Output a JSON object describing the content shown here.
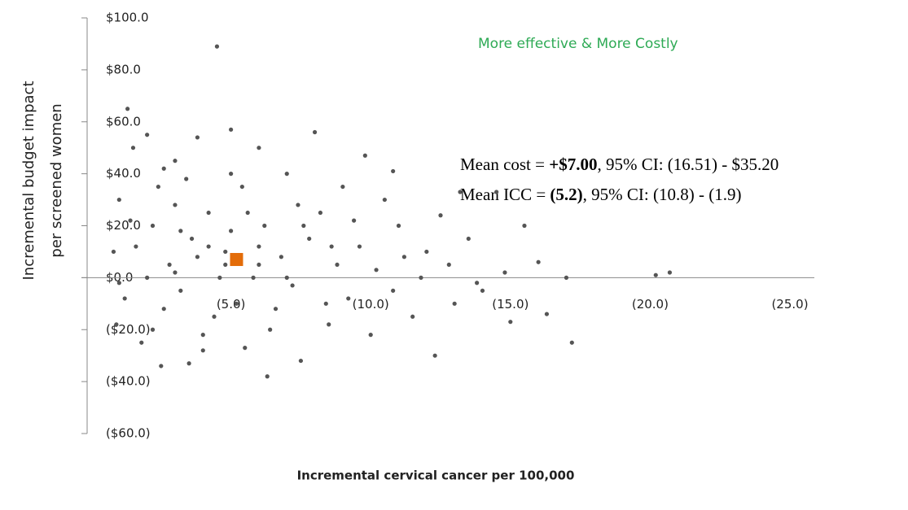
{
  "chart_data": {
    "type": "scatter",
    "y_label": [
      "Incremental budget impact",
      "per screened women"
    ],
    "x_label": "Incremental cervical cancer per 100,000",
    "quadrant_note": "More effective & More Costly",
    "mean_cost": [
      "Mean cost = ",
      "+$7.00",
      ", 95% CI: (16.51) - $35.20"
    ],
    "mean_icc": [
      "Mean ICC = ",
      "(5.2)",
      ", 95% CI: (10.8) - (1.9)"
    ],
    "xlim": [
      0,
      -25
    ],
    "ylim": [
      -60,
      100
    ],
    "xticks": [
      {
        "value": -5,
        "label": "(5.0)"
      },
      {
        "value": -10,
        "label": "(10.0)"
      },
      {
        "value": -15,
        "label": "(15.0)"
      },
      {
        "value": -20,
        "label": "(20.0)"
      },
      {
        "value": -25,
        "label": "(25.0)"
      }
    ],
    "yticks": [
      {
        "value": 100,
        "label": "$100.0"
      },
      {
        "value": 80,
        "label": "$80.0"
      },
      {
        "value": 60,
        "label": "$60.0"
      },
      {
        "value": 40,
        "label": "$40.0"
      },
      {
        "value": 20,
        "label": "$20.0"
      },
      {
        "value": 0,
        "label": "$0.0"
      },
      {
        "value": -20,
        "label": "($20.0)"
      },
      {
        "value": -40,
        "label": "($40.0)"
      },
      {
        "value": -60,
        "label": "($60.0)"
      }
    ],
    "series": [
      {
        "color": "#555555",
        "marker": "circle",
        "x": [
          -4.5,
          -1.3,
          -20.2,
          -20.7,
          -17.2,
          -12.3,
          -6.3,
          -17.0,
          -16.0,
          -15.5,
          -14.5,
          -13.2,
          -10.8,
          -8.0,
          -9.8,
          -16.3,
          -15.0,
          -2.0,
          -3.8,
          -5.0,
          -6.0,
          -1.5,
          -2.5,
          -3.5,
          -7.5,
          -1.8,
          -4.0,
          -5.5,
          -8.5,
          -10.0,
          -11.5,
          -13.0,
          -14.0,
          -12.0,
          -11.0,
          -12.5,
          -13.5,
          -10.5,
          -9.0,
          -7.0,
          -3.0,
          -1.0,
          -0.8,
          -1.2,
          -0.9,
          -2.2,
          -2.8,
          -3.2,
          -3.6,
          -4.2,
          -4.8,
          -5.2,
          -5.8,
          -6.2,
          -6.8,
          -7.2,
          -7.8,
          -8.2,
          -8.8,
          -9.2,
          -9.6,
          -10.2,
          -10.8,
          -11.2,
          -11.8,
          -12.8,
          -13.8,
          -14.8,
          -2.4,
          -3.4,
          -4.4,
          -5.4,
          -6.4,
          -7.4,
          -8.4,
          -1.6,
          -2.6,
          -3.0,
          -4.6,
          -5.0,
          -6.0,
          -7.0,
          -2.0,
          -3.8,
          -4.0,
          -6.6,
          -1.4,
          -2.2,
          -3.2,
          -5.6,
          -4.2,
          -3.0,
          -6.0,
          -7.6,
          -8.6,
          -9.4,
          -5.0,
          -2.6,
          -1.0,
          -4.8
        ],
        "values": [
          89,
          65,
          1,
          2,
          -25,
          -30,
          -38,
          0,
          6,
          20,
          33,
          33,
          41,
          56,
          47,
          -14,
          -17,
          55,
          54,
          57,
          50,
          50,
          -34,
          -33,
          -32,
          -25,
          -28,
          -27,
          -18,
          -22,
          -15,
          -10,
          -5,
          10,
          20,
          24,
          15,
          30,
          35,
          40,
          45,
          30,
          10,
          -8,
          -18,
          20,
          5,
          -5,
          15,
          25,
          10,
          -10,
          0,
          20,
          8,
          -3,
          15,
          25,
          5,
          -8,
          12,
          3,
          -5,
          8,
          0,
          5,
          -2,
          2,
          35,
          38,
          -15,
          35,
          -20,
          28,
          -10,
          12,
          -12,
          28,
          0,
          18,
          12,
          0,
          0,
          8,
          -22,
          -12,
          22,
          -20,
          18,
          25,
          12,
          2,
          5,
          20,
          12,
          22,
          40,
          42,
          -2,
          5
        ]
      },
      {
        "color": "#e36c09",
        "marker": "square",
        "x": [
          -5.2
        ],
        "values": [
          7
        ]
      }
    ]
  }
}
